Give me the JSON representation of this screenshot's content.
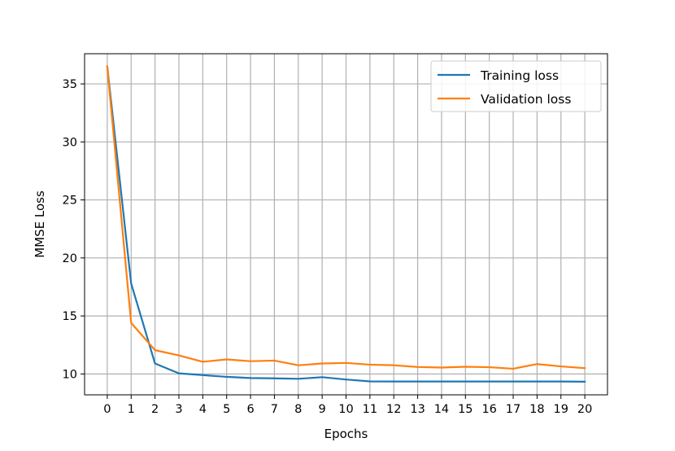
{
  "chart_data": {
    "type": "line",
    "xlabel": "Epochs",
    "ylabel": "MMSE Loss",
    "x": [
      0,
      1,
      2,
      3,
      4,
      5,
      6,
      7,
      8,
      9,
      10,
      11,
      12,
      13,
      14,
      15,
      16,
      17,
      18,
      19,
      20
    ],
    "xlim": [
      -0.95,
      20.95
    ],
    "ylim": [
      8.2,
      37.6
    ],
    "yticks": [
      10,
      15,
      20,
      25,
      30,
      35
    ],
    "grid": true,
    "legend_position": "top-right",
    "series": [
      {
        "name": "Training loss",
        "color": "#1f77b4",
        "values": [
          36.5,
          17.8,
          10.9,
          10.05,
          9.9,
          9.75,
          9.65,
          9.62,
          9.58,
          9.72,
          9.52,
          9.36,
          9.35,
          9.35,
          9.35,
          9.35,
          9.35,
          9.35,
          9.35,
          9.35,
          9.33
        ]
      },
      {
        "name": "Validation loss",
        "color": "#ff7f0e",
        "values": [
          36.5,
          14.4,
          12.05,
          11.6,
          11.05,
          11.25,
          11.1,
          11.15,
          10.75,
          10.9,
          10.95,
          10.8,
          10.75,
          10.6,
          10.55,
          10.62,
          10.58,
          10.45,
          10.85,
          10.65,
          10.5
        ]
      }
    ]
  }
}
